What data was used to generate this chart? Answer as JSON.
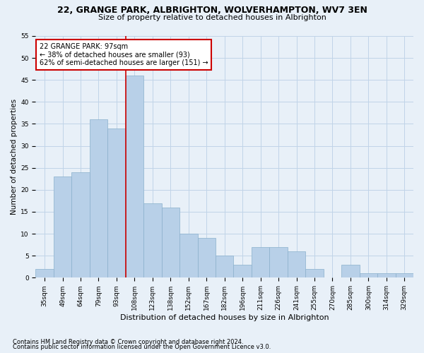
{
  "title": "22, GRANGE PARK, ALBRIGHTON, WOLVERHAMPTON, WV7 3EN",
  "subtitle": "Size of property relative to detached houses in Albrighton",
  "xlabel": "Distribution of detached houses by size in Albrighton",
  "ylabel": "Number of detached properties",
  "footnote1": "Contains HM Land Registry data © Crown copyright and database right 2024.",
  "footnote2": "Contains public sector information licensed under the Open Government Licence v3.0.",
  "categories": [
    "35sqm",
    "49sqm",
    "64sqm",
    "79sqm",
    "93sqm",
    "108sqm",
    "123sqm",
    "138sqm",
    "152sqm",
    "167sqm",
    "182sqm",
    "196sqm",
    "211sqm",
    "226sqm",
    "241sqm",
    "255sqm",
    "270sqm",
    "285sqm",
    "300sqm",
    "314sqm",
    "329sqm"
  ],
  "values": [
    2,
    23,
    24,
    36,
    34,
    46,
    17,
    16,
    10,
    9,
    5,
    3,
    7,
    7,
    6,
    2,
    0,
    3,
    1,
    1,
    1
  ],
  "bar_color": "#b8d0e8",
  "bar_edge_color": "#8ab0cc",
  "grid_color": "#c0d4e8",
  "background_color": "#e8f0f8",
  "annotation_label": "22 GRANGE PARK: 97sqm",
  "annotation_line1": "← 38% of detached houses are smaller (93)",
  "annotation_line2": "62% of semi-detached houses are larger (151) →",
  "vline_color": "#cc0000",
  "vline_position": 4.5,
  "annotation_box_facecolor": "#ffffff",
  "annotation_box_edgecolor": "#cc0000",
  "ylim": [
    0,
    55
  ],
  "yticks": [
    0,
    5,
    10,
    15,
    20,
    25,
    30,
    35,
    40,
    45,
    50,
    55
  ],
  "title_fontsize": 9,
  "subtitle_fontsize": 8,
  "tick_fontsize": 6.5,
  "ylabel_fontsize": 7.5,
  "xlabel_fontsize": 8,
  "footnote_fontsize": 6,
  "annotation_fontsize": 7
}
